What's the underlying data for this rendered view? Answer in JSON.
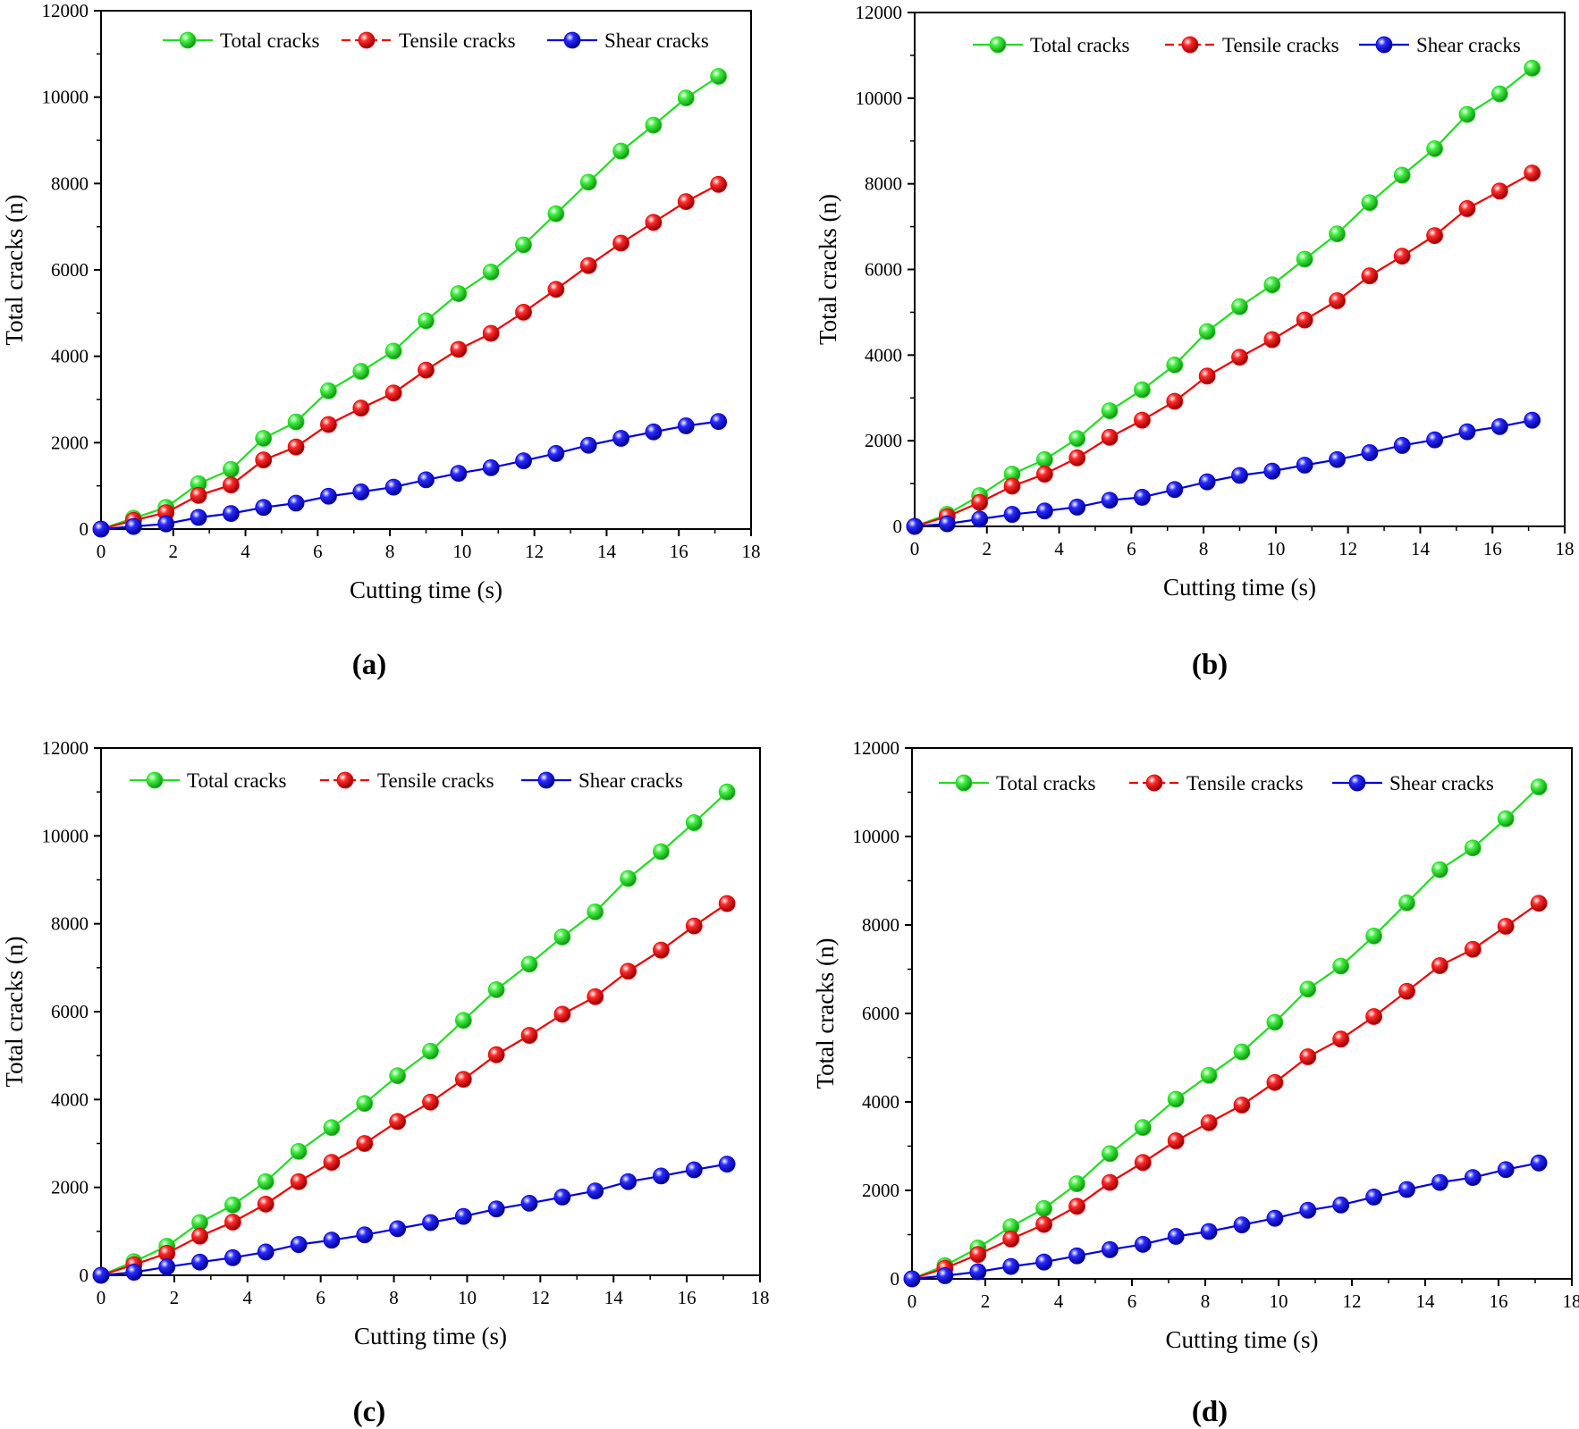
{
  "chart_data": [
    {
      "type": "line",
      "panel_label": "(a)",
      "xlabel": "Cutting time (s)",
      "ylabel": "Total cracks (n)",
      "xlim": [
        0,
        18
      ],
      "ylim": [
        0,
        12000
      ],
      "xticks": [
        "0",
        "2",
        "4",
        "6",
        "8",
        "10",
        "12",
        "14",
        "16",
        "18"
      ],
      "yticks": [
        "0",
        "2000",
        "4000",
        "6000",
        "8000",
        "10000",
        "12000"
      ],
      "grid": false,
      "legend_position": "top",
      "x": [
        0,
        0.9,
        1.8,
        2.7,
        3.6,
        4.5,
        5.4,
        6.3,
        7.2,
        8.1,
        9.0,
        9.9,
        10.8,
        11.7,
        12.6,
        13.5,
        14.4,
        15.3,
        16.2,
        17.1
      ],
      "series": [
        {
          "name": "Total cracks",
          "color": "#22dd22",
          "marker_color": "#33ee33",
          "values": [
            0,
            250,
            500,
            1050,
            1380,
            2100,
            2480,
            3200,
            3650,
            4120,
            4820,
            5450,
            5950,
            6580,
            7300,
            8030,
            8750,
            9350,
            9980,
            10480
          ]
        },
        {
          "name": "Tensile cracks",
          "color": "#ee0000",
          "marker_color": "#ff2020",
          "values": [
            0,
            200,
            380,
            780,
            1020,
            1600,
            1900,
            2420,
            2800,
            3150,
            3680,
            4160,
            4530,
            5020,
            5550,
            6100,
            6620,
            7100,
            7580,
            7980
          ]
        },
        {
          "name": "Shear cracks",
          "color": "#0000dd",
          "marker_color": "#1a1aff",
          "values": [
            0,
            60,
            120,
            270,
            360,
            500,
            600,
            760,
            860,
            970,
            1140,
            1290,
            1420,
            1580,
            1750,
            1940,
            2100,
            2250,
            2390,
            2490
          ]
        }
      ]
    },
    {
      "type": "line",
      "panel_label": "(b)",
      "xlabel": "Cutting time (s)",
      "ylabel": "Total cracks (n)",
      "xlim": [
        0,
        18
      ],
      "ylim": [
        0,
        12000
      ],
      "xticks": [
        "0",
        "2",
        "4",
        "6",
        "8",
        "10",
        "12",
        "14",
        "16",
        "18"
      ],
      "yticks": [
        "0",
        "2000",
        "4000",
        "6000",
        "8000",
        "10000",
        "12000"
      ],
      "grid": false,
      "legend_position": "top",
      "x": [
        0,
        0.9,
        1.8,
        2.7,
        3.6,
        4.5,
        5.4,
        6.3,
        7.2,
        8.1,
        9.0,
        9.9,
        10.8,
        11.7,
        12.6,
        13.5,
        14.4,
        15.3,
        16.2,
        17.1
      ],
      "series": [
        {
          "name": "Total cracks",
          "color": "#22dd22",
          "marker_color": "#33ee33",
          "values": [
            0,
            280,
            720,
            1220,
            1560,
            2050,
            2700,
            3190,
            3770,
            4550,
            5130,
            5640,
            6240,
            6830,
            7560,
            8200,
            8820,
            9620,
            10100,
            10700
          ]
        },
        {
          "name": "Tensile cracks",
          "color": "#ee0000",
          "marker_color": "#ff2020",
          "values": [
            0,
            230,
            560,
            940,
            1220,
            1600,
            2080,
            2480,
            2920,
            3510,
            3950,
            4360,
            4820,
            5270,
            5850,
            6310,
            6790,
            7420,
            7830,
            8250
          ]
        },
        {
          "name": "Shear cracks",
          "color": "#0000dd",
          "marker_color": "#1a1aff",
          "values": [
            0,
            60,
            170,
            280,
            360,
            450,
            610,
            680,
            860,
            1040,
            1190,
            1290,
            1430,
            1560,
            1720,
            1890,
            2020,
            2210,
            2330,
            2480
          ]
        }
      ]
    },
    {
      "type": "line",
      "panel_label": "(c)",
      "xlabel": "Cutting time (s)",
      "ylabel": "Total cracks (n)",
      "xlim": [
        0,
        18
      ],
      "ylim": [
        0,
        12000
      ],
      "xticks": [
        "0",
        "2",
        "4",
        "6",
        "8",
        "10",
        "12",
        "14",
        "16",
        "18"
      ],
      "yticks": [
        "0",
        "2000",
        "4000",
        "6000",
        "8000",
        "10000",
        "12000"
      ],
      "grid": false,
      "legend_position": "top",
      "x": [
        0,
        0.9,
        1.8,
        2.7,
        3.6,
        4.5,
        5.4,
        6.3,
        7.2,
        8.1,
        9.0,
        9.9,
        10.8,
        11.7,
        12.6,
        13.5,
        14.4,
        15.3,
        16.2,
        17.1
      ],
      "series": [
        {
          "name": "Total cracks",
          "color": "#22dd22",
          "marker_color": "#33ee33",
          "values": [
            0,
            310,
            660,
            1200,
            1600,
            2130,
            2820,
            3360,
            3910,
            4540,
            5100,
            5800,
            6500,
            7080,
            7700,
            8270,
            9030,
            9640,
            10300,
            11000
          ]
        },
        {
          "name": "Tensile cracks",
          "color": "#ee0000",
          "marker_color": "#ff2020",
          "values": [
            0,
            240,
            500,
            890,
            1210,
            1620,
            2130,
            2570,
            3000,
            3500,
            3940,
            4460,
            5020,
            5460,
            5940,
            6340,
            6920,
            7400,
            7950,
            8460
          ]
        },
        {
          "name": "Shear cracks",
          "color": "#0000dd",
          "marker_color": "#1a1aff",
          "values": [
            0,
            70,
            190,
            300,
            400,
            530,
            700,
            800,
            920,
            1060,
            1200,
            1340,
            1510,
            1640,
            1780,
            1920,
            2130,
            2260,
            2400,
            2530
          ]
        }
      ]
    },
    {
      "type": "line",
      "panel_label": "(d)",
      "xlabel": "Cutting time (s)",
      "ylabel": "Total cracks (n)",
      "xlim": [
        0,
        18
      ],
      "ylim": [
        0,
        12000
      ],
      "xticks": [
        "0",
        "2",
        "4",
        "6",
        "8",
        "10",
        "12",
        "14",
        "16",
        "18"
      ],
      "yticks": [
        "0",
        "2000",
        "4000",
        "6000",
        "8000",
        "10000",
        "12000"
      ],
      "grid": false,
      "legend_position": "top",
      "x": [
        0,
        0.9,
        1.8,
        2.7,
        3.6,
        4.5,
        5.4,
        6.3,
        7.2,
        8.1,
        9.0,
        9.9,
        10.8,
        11.7,
        12.6,
        13.5,
        14.4,
        15.3,
        16.2,
        17.1
      ],
      "series": [
        {
          "name": "Total cracks",
          "color": "#22dd22",
          "marker_color": "#33ee33",
          "values": [
            0,
            300,
            700,
            1180,
            1590,
            2150,
            2830,
            3420,
            4060,
            4600,
            5130,
            5800,
            6550,
            7070,
            7750,
            8500,
            9250,
            9740,
            10400,
            11120
          ]
        },
        {
          "name": "Tensile cracks",
          "color": "#ee0000",
          "marker_color": "#ff2020",
          "values": [
            0,
            240,
            550,
            900,
            1230,
            1640,
            2180,
            2630,
            3120,
            3530,
            3930,
            4440,
            5020,
            5420,
            5930,
            6500,
            7080,
            7450,
            7970,
            8490
          ]
        },
        {
          "name": "Shear cracks",
          "color": "#0000dd",
          "marker_color": "#1a1aff",
          "values": [
            0,
            70,
            160,
            280,
            380,
            520,
            660,
            780,
            960,
            1070,
            1220,
            1370,
            1550,
            1670,
            1850,
            2020,
            2180,
            2290,
            2470,
            2620
          ]
        }
      ]
    }
  ]
}
